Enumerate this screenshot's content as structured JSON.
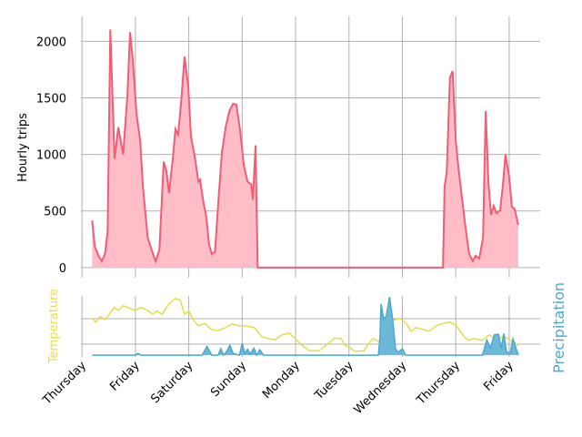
{
  "chart_data": [
    {
      "type": "area",
      "ylabel": "Hourly trips",
      "xlim": [
        -0.02,
        8.58
      ],
      "ylim": [
        -90,
        2220
      ],
      "yticks": [
        0,
        500,
        1000,
        1500,
        2000
      ],
      "grid": true,
      "series": [
        {
          "color": "#f25c74",
          "fill": "#ffbdc7",
          "x": [
            0.19,
            0.24,
            0.31,
            0.37,
            0.43,
            0.48,
            0.53,
            0.61,
            0.68,
            0.77,
            0.85,
            0.9,
            0.95,
            1.02,
            1.09,
            1.14,
            1.23,
            1.33,
            1.38,
            1.45,
            1.53,
            1.58,
            1.63,
            1.7,
            1.75,
            1.8,
            1.86,
            1.92,
            1.99,
            2.04,
            2.11,
            2.18,
            2.21,
            2.28,
            2.33,
            2.38,
            2.43,
            2.49,
            2.55,
            2.62,
            2.69,
            2.76,
            2.83,
            2.89,
            2.96,
            3.03,
            3.1,
            3.17,
            3.2,
            3.25,
            3.29,
            6.76,
            6.79,
            6.83,
            6.89,
            6.94,
            7.0,
            7.05,
            7.11,
            7.18,
            7.25,
            7.32,
            7.37,
            7.44,
            7.51,
            7.56,
            7.61,
            7.66,
            7.71,
            7.76,
            7.83,
            7.88,
            7.93,
            8.0,
            8.05,
            8.1,
            8.17
          ],
          "values": [
            416,
            184,
            104,
            56,
            120,
            320,
            2104,
            960,
            1240,
            1000,
            1520,
            2080,
            1840,
            1360,
            1120,
            720,
            264,
            120,
            56,
            160,
            936,
            856,
            656,
            960,
            1224,
            1176,
            1480,
            1864,
            1600,
            1160,
            984,
            760,
            776,
            560,
            440,
            200,
            120,
            136,
            560,
            1016,
            1240,
            1384,
            1448,
            1440,
            1216,
            904,
            760,
            736,
            600,
            1080,
            0,
            0,
            720,
            840,
            1680,
            1736,
            1120,
            880,
            640,
            360,
            120,
            56,
            104,
            80,
            264,
            1384,
            760,
            464,
            544,
            480,
            504,
            720,
            1000,
            800,
            536,
            520,
            376
          ]
        }
      ]
    },
    {
      "type": "line",
      "ylabel": "Temperature",
      "y2label": "Precipitation",
      "xlim": [
        -0.02,
        8.58
      ],
      "ylim": [
        0,
        10
      ],
      "y2lim": [
        -0.3,
        10.2
      ],
      "grid": true,
      "xticks": [
        {
          "value": 0,
          "label": "Thursday"
        },
        {
          "value": 1,
          "label": "Friday"
        },
        {
          "value": 2,
          "label": "Saturday"
        },
        {
          "value": 3,
          "label": "Sunday"
        },
        {
          "value": 4,
          "label": "Monday"
        },
        {
          "value": 5,
          "label": "Tuesday"
        },
        {
          "value": 6,
          "label": "Wednesday"
        },
        {
          "value": 7,
          "label": "Thursday"
        },
        {
          "value": 8,
          "label": "Friday"
        }
      ],
      "series": [
        {
          "color": "#e5dc4a",
          "x": [
            0.19,
            0.26,
            0.34,
            0.43,
            0.51,
            0.6,
            0.68,
            0.77,
            0.85,
            0.99,
            1.11,
            1.23,
            1.33,
            1.4,
            1.5,
            1.62,
            1.74,
            1.84,
            1.92,
            2.0,
            2.09,
            2.18,
            2.3,
            2.42,
            2.55,
            2.69,
            2.81,
            2.93,
            3.06,
            3.23,
            3.37,
            3.49,
            3.61,
            3.74,
            3.88,
            4.0,
            4.09,
            4.26,
            4.43,
            4.51,
            4.6,
            4.73,
            4.85,
            4.94,
            5.02,
            5.11,
            5.28,
            5.36,
            5.45,
            5.58,
            5.7,
            5.82,
            5.96,
            6.08,
            6.16,
            6.26,
            6.38,
            6.5,
            6.64,
            6.77,
            6.89,
            7.01,
            7.15,
            7.23,
            7.35,
            7.49,
            7.63,
            7.74,
            7.91,
            8.09,
            8.17
          ],
          "values": [
            6.3,
            5.7,
            6.6,
            6.1,
            7.0,
            8.1,
            7.6,
            8.4,
            8.1,
            7.6,
            8.1,
            7.6,
            7.0,
            7.5,
            7.0,
            8.6,
            9.6,
            9.3,
            7.0,
            7.5,
            6.0,
            5.1,
            5.5,
            4.5,
            4.3,
            4.8,
            5.4,
            5.1,
            5.1,
            4.8,
            3.3,
            3.0,
            2.8,
            3.6,
            3.9,
            3.0,
            2.1,
            1.0,
            1.0,
            1.5,
            2.1,
            3.1,
            3.0,
            1.8,
            1.5,
            0.9,
            1.0,
            2.1,
            3.0,
            2.4,
            4.6,
            6.0,
            6.3,
            5.4,
            4.2,
            4.8,
            4.5,
            4.2,
            5.1,
            5.5,
            5.7,
            5.1,
            3.4,
            2.7,
            3.0,
            2.7,
            3.6,
            3.0,
            3.3,
            2.4,
            1.8
          ]
        },
        {
          "color": "#4aa8d0",
          "fill": "#6bb8d8",
          "axis": "y2",
          "x": [
            0.19,
            1.0,
            1.05,
            1.1,
            2.25,
            2.34,
            2.43,
            2.55,
            2.6,
            2.65,
            2.7,
            2.77,
            2.83,
            2.95,
            3.0,
            3.05,
            3.1,
            3.15,
            3.22,
            3.27,
            3.33,
            3.4,
            5.55,
            5.58,
            5.6,
            5.65,
            5.7,
            5.76,
            5.82,
            5.87,
            5.92,
            6.0,
            6.06,
            7.5,
            7.58,
            7.65,
            7.72,
            7.8,
            7.85,
            7.9,
            7.95,
            8.02,
            8.07,
            8.17
          ],
          "values": [
            0,
            0,
            0.3,
            0,
            0,
            1.5,
            0,
            0,
            1.1,
            0,
            0.5,
            1.7,
            0.3,
            0,
            2.0,
            0.3,
            1.0,
            0.2,
            1.2,
            0,
            0.9,
            0,
            0,
            3,
            8.8,
            6.2,
            6.8,
            10,
            6.0,
            1.1,
            0.5,
            1.1,
            0,
            0,
            2.6,
            1.2,
            3.5,
            3.6,
            1.2,
            3.7,
            0.5,
            0.4,
            2.8,
            0
          ]
        }
      ]
    }
  ]
}
